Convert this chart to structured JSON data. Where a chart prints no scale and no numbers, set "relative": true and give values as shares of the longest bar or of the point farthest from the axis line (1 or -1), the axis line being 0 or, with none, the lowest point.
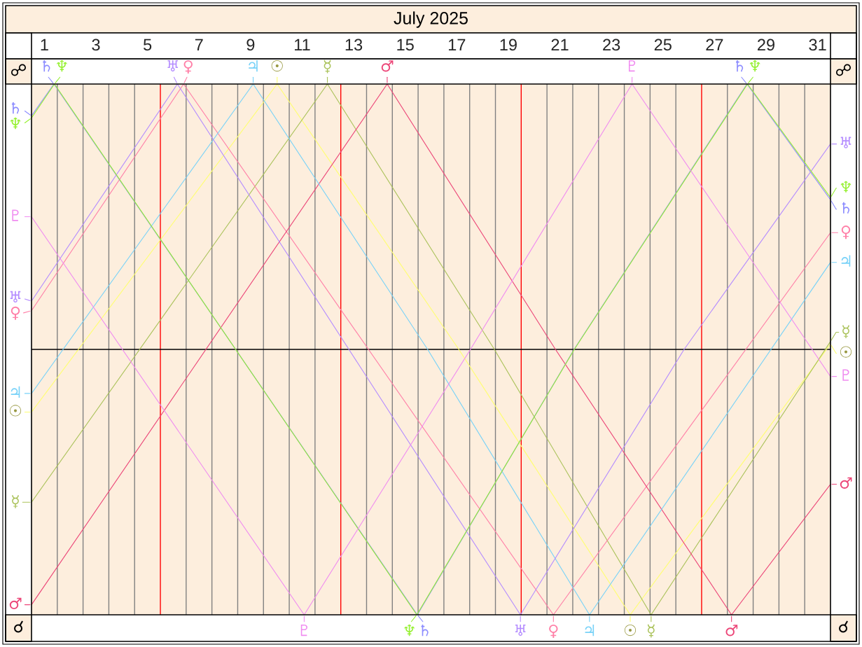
{
  "chart_data": {
    "type": "line",
    "title": "July 2025",
    "relative": true,
    "xlim": [
      1,
      32
    ],
    "xticks": [
      {
        "value": 1.5,
        "label": "1"
      },
      {
        "value": 3.5,
        "label": "3"
      },
      {
        "value": 5.5,
        "label": "5"
      },
      {
        "value": 7.5,
        "label": "7"
      },
      {
        "value": 9.5,
        "label": "9"
      },
      {
        "value": 11.5,
        "label": "11"
      },
      {
        "value": 13.5,
        "label": "13"
      },
      {
        "value": 15.5,
        "label": "15"
      },
      {
        "value": 17.5,
        "label": "17"
      },
      {
        "value": 19.5,
        "label": "19"
      },
      {
        "value": 21.5,
        "label": "21"
      },
      {
        "value": 23.5,
        "label": "23"
      },
      {
        "value": 25.5,
        "label": "25"
      },
      {
        "value": 27.5,
        "label": "27"
      },
      {
        "value": 29.5,
        "label": "29"
      },
      {
        "value": 31.5,
        "label": "31"
      },
      {
        "value": 2,
        "label": null
      },
      {
        "value": 3,
        "label": null
      },
      {
        "value": 4,
        "label": null
      },
      {
        "value": 5,
        "label": null
      },
      {
        "value": 7,
        "label": null
      },
      {
        "value": 8,
        "label": null
      },
      {
        "value": 9,
        "label": null
      },
      {
        "value": 10,
        "label": null
      },
      {
        "value": 11,
        "label": null
      },
      {
        "value": 12,
        "label": null
      },
      {
        "value": 14,
        "label": null
      },
      {
        "value": 15,
        "label": null
      },
      {
        "value": 16,
        "label": null
      },
      {
        "value": 17,
        "label": null
      },
      {
        "value": 18,
        "label": null
      },
      {
        "value": 19,
        "label": null
      },
      {
        "value": 21,
        "label": null
      },
      {
        "value": 22,
        "label": null
      },
      {
        "value": 23,
        "label": null
      },
      {
        "value": 24,
        "label": null
      },
      {
        "value": 25,
        "label": null
      },
      {
        "value": 26,
        "label": null
      },
      {
        "value": 28,
        "label": null
      },
      {
        "value": 29,
        "label": null
      },
      {
        "value": 30,
        "label": null
      },
      {
        "value": 31,
        "label": null
      }
    ],
    "tick_labels": "x",
    "grid": "x",
    "legend": "right",
    "ref_lines": [
      {
        "axis": "x",
        "value": 6,
        "color": "#ff0000"
      },
      {
        "axis": "x",
        "value": 13,
        "color": "#ff0000"
      },
      {
        "axis": "x",
        "value": 20,
        "color": "#ff0000"
      },
      {
        "axis": "x",
        "value": 27,
        "color": "#ff0000"
      },
      {
        "axis": "y",
        "value": 0.5,
        "color": "#000000"
      }
    ],
    "annotations": [
      "☍",
      "☍",
      "☌",
      "☌"
    ],
    "series": [
      {
        "name": "☉",
        "color": "#ffff70",
        "x": [
          1,
          10.53,
          17.58,
          24.23,
          32
        ],
        "values": [
          0.382,
          1,
          0.5,
          0,
          0.51
        ]
      },
      {
        "name": "☿",
        "color": "#aac25a",
        "x": [
          1,
          12.48,
          18.96,
          25.04,
          32
        ],
        "values": [
          0.212,
          1,
          0.5,
          0,
          0.515
        ]
      },
      {
        "name": "♀",
        "color": "#ff80a8",
        "x": [
          1,
          6.9,
          21.25,
          32
        ],
        "values": [
          0.573,
          1,
          0,
          0.72
        ]
      },
      {
        "name": "♂",
        "color": "#ec4678",
        "x": [
          1,
          14.8,
          21.33,
          28.16,
          32
        ],
        "values": [
          0.019,
          1,
          0.5,
          0,
          0.246
        ]
      },
      {
        "name": "♃",
        "color": "#78d2f8",
        "x": [
          1,
          9.6,
          16.37,
          22.65,
          32
        ],
        "values": [
          0.417,
          1,
          0.5,
          0,
          0.664
        ]
      },
      {
        "name": "♄",
        "color": "#8c8cff",
        "x": [
          1,
          1.87,
          15.97,
          22.05,
          28.76,
          32
        ],
        "values": [
          0.94,
          1,
          0,
          0.5,
          1,
          0.782
        ]
      },
      {
        "name": "♅",
        "color": "#b48cff",
        "x": [
          1,
          6.66,
          19.97,
          26.32,
          32
        ],
        "values": [
          0.591,
          1,
          0,
          0.5,
          0.887
        ]
      },
      {
        "name": "♆",
        "color": "#96f032",
        "x": [
          1,
          1.89,
          15.95,
          22.06,
          28.78,
          32
        ],
        "values": [
          0.936,
          1,
          0,
          0.5,
          1,
          0.786
        ]
      },
      {
        "name": "♇",
        "color": "#f08cf0",
        "x": [
          1,
          11.58,
          18.03,
          24.3,
          32
        ],
        "values": [
          0.75,
          0,
          0.5,
          1,
          0.449
        ]
      }
    ]
  }
}
